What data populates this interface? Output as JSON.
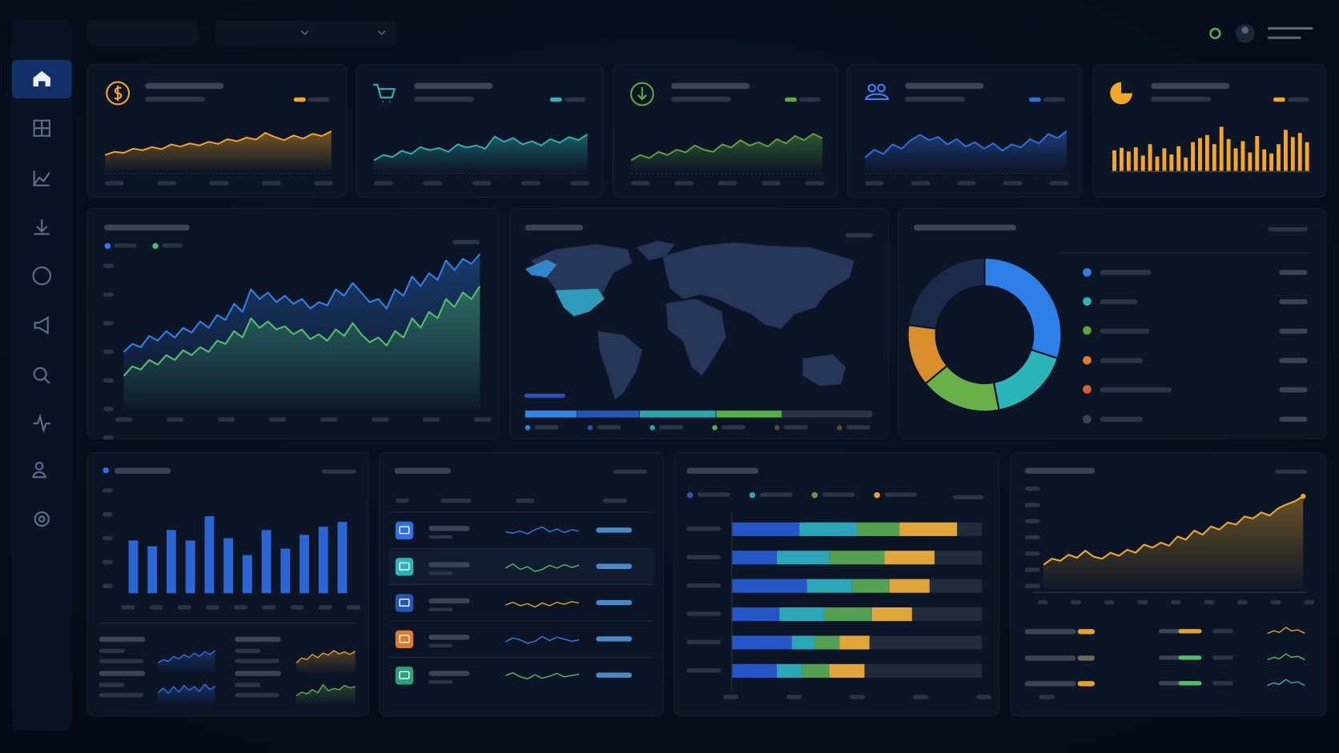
{
  "kpi_cards": [
    {
      "type": "area",
      "color": "#f5a623",
      "ylim": [
        0,
        10
      ],
      "values": [
        3,
        3.6,
        3.4,
        4.2,
        3.9,
        4.5,
        4.1,
        5,
        4.6,
        5.2,
        4.8,
        5.5,
        5.1,
        6,
        5.6,
        6.3,
        5.9,
        7.2,
        6.4,
        5.8,
        6.7,
        6.1,
        7,
        6.6,
        7.5
      ]
    },
    {
      "type": "area",
      "color": "#2bb5b8",
      "ylim": [
        0,
        10
      ],
      "values": [
        2,
        3,
        2.6,
        3.8,
        3.2,
        4.5,
        3.9,
        4.3,
        3.6,
        5,
        4.4,
        4.8,
        4.2,
        6.5,
        5.5,
        6.2,
        5,
        5.6,
        4.8,
        6,
        5.3,
        6.4,
        5.8,
        6.9
      ]
    },
    {
      "type": "area",
      "color": "#5aa83c",
      "ylim": [
        0,
        10
      ],
      "values": [
        2,
        3,
        2.4,
        3.6,
        3,
        4,
        3.5,
        4.8,
        4,
        3.6,
        5,
        4.4,
        5.8,
        4.8,
        5.4,
        4.6,
        6,
        5.2,
        6.6,
        5.8,
        7,
        6.2
      ]
    },
    {
      "type": "area",
      "color": "#2f6fe0",
      "ylim": [
        0,
        10
      ],
      "values": [
        2.5,
        4,
        3.2,
        5,
        4.2,
        5.8,
        6.8,
        5.8,
        6.4,
        5,
        6,
        4.6,
        5.4,
        4.2,
        5.2,
        3.8,
        5,
        4.4,
        6,
        5.2,
        7,
        6.2,
        7.5
      ]
    },
    {
      "type": "bar",
      "color": "#f5a623",
      "ylim": [
        0,
        10
      ],
      "values": [
        4,
        4.5,
        3.8,
        4.6,
        3,
        5.2,
        2.8,
        4.4,
        3.2,
        4.8,
        2.6,
        5.6,
        6.4,
        7,
        5.2,
        8.6,
        6.2,
        4.4,
        5.8,
        3.6,
        6.8,
        4.2,
        3.4,
        5.2,
        8,
        6.6,
        7.4,
        5.6
      ]
    }
  ],
  "main_chart": {
    "type": "area",
    "ylim": [
      0,
      10
    ],
    "series": [
      {
        "color": "#2f7fe8",
        "values": [
          3.5,
          4,
          3.8,
          4.5,
          4.2,
          4.8,
          4.4,
          5,
          4.7,
          5.4,
          5,
          5.8,
          5.5,
          6.5,
          6,
          7.4,
          6.8,
          7.2,
          6.6,
          7,
          6.5,
          6.8,
          6.2,
          6.6,
          6.4,
          7.4,
          7,
          7.8,
          7.2,
          6.6,
          6.8,
          6.2,
          7.4,
          7,
          8.2,
          7.6,
          8.4,
          8,
          9.2,
          8.6,
          9.3,
          9,
          9.6
        ]
      },
      {
        "color": "#4fbf6a",
        "values": [
          2,
          2.6,
          2.4,
          3,
          2.7,
          3.3,
          3,
          3.6,
          3.3,
          3.8,
          3.5,
          4.2,
          4,
          4.8,
          4.4,
          5.6,
          5,
          5.4,
          4.9,
          5.1,
          4.6,
          4.9,
          4.3,
          4.6,
          4.2,
          4.9,
          4.5,
          5.3,
          4.6,
          4.1,
          4.4,
          3.9,
          4.8,
          4.4,
          5.6,
          5,
          6,
          5.6,
          6.8,
          6.3,
          7.2,
          6.8,
          7.6
        ]
      }
    ]
  },
  "region_bar": {
    "xlim": [
      0,
      100
    ],
    "values": [
      15,
      18,
      22,
      19
    ],
    "colors": [
      "#2f86e8",
      "#2456b8",
      "#2aa6b0",
      "#56b048"
    ]
  },
  "donut": {
    "values": [
      30,
      17,
      17,
      13,
      23
    ],
    "colors": [
      "#2f7fe8",
      "#2bb5b8",
      "#6ab048",
      "#d88f2c",
      "#1a2a48"
    ]
  },
  "bar_chart": {
    "ylim": [
      0,
      10
    ],
    "color": "#2f6fe8",
    "values": [
      6.5,
      5.8,
      7.8,
      6.5,
      9.5,
      6.8,
      4.7,
      7.8,
      5.5,
      7.2,
      8.2,
      8.8
    ]
  },
  "mini_sparks": [
    {
      "color": "#2f6fe8",
      "values": [
        3,
        4,
        3.5,
        5,
        4.2,
        5.5,
        4.6,
        6,
        5,
        6.5,
        5.6,
        6.8
      ]
    },
    {
      "color": "#e6a22a",
      "values": [
        3,
        4.5,
        4,
        5.6,
        4.6,
        6,
        5.4,
        6.8,
        5.8,
        6.4,
        5.6,
        6.6
      ]
    },
    {
      "color": "#2f6fe8",
      "values": [
        4,
        5.5,
        3.8,
        6,
        4.2,
        6.4,
        4.8,
        6,
        4.4,
        6.8,
        5,
        6.2
      ]
    },
    {
      "color": "#6ab048",
      "values": [
        3,
        4.2,
        3.6,
        5,
        4,
        6.6,
        4.6,
        5.4,
        5,
        6.4,
        5.6,
        6
      ]
    }
  ],
  "table_rows": [
    {
      "icon_color": "#2f6fe8",
      "spark_color": "#2f7fe8",
      "values": [
        5,
        4.6,
        5.2,
        4.4,
        5.6,
        6.4,
        5,
        5.8,
        4.8,
        5.6,
        5.2
      ]
    },
    {
      "icon_color": "#2bb5b8",
      "spark_color": "#4fbf6a",
      "values": [
        5,
        6.2,
        4.6,
        5.4,
        4,
        4.6,
        5.8,
        5,
        6,
        5.2,
        5.8
      ]
    },
    {
      "icon_color": "#2456b8",
      "spark_color": "#e6a22a",
      "values": [
        4.8,
        5.6,
        4.6,
        5.2,
        4.2,
        5.4,
        4.6,
        5.6,
        5,
        5.8,
        5.4
      ]
    },
    {
      "icon_color": "#e07a2c",
      "spark_color": "#2f7fe8",
      "values": [
        4.6,
        5.8,
        5.2,
        4.2,
        4.8,
        6.2,
        5,
        6,
        5.4,
        4.8,
        5.2
      ]
    },
    {
      "icon_color": "#2aa07a",
      "spark_color": "#4fbf6a",
      "values": [
        5.4,
        6.2,
        5,
        4.4,
        5.6,
        4.6,
        5.2,
        6,
        5,
        5.4,
        5.8
      ]
    }
  ],
  "stacked_bars": {
    "xlim": [
      0,
      100
    ],
    "colors": [
      "#2456c8",
      "#2aa6b8",
      "#52a050",
      "#e0a63a"
    ],
    "rows": [
      [
        27,
        23,
        17,
        23
      ],
      [
        18,
        21,
        22,
        20
      ],
      [
        30,
        18,
        15,
        16
      ],
      [
        19,
        18,
        19,
        16
      ],
      [
        24,
        9,
        10,
        12
      ],
      [
        18,
        10,
        11,
        14
      ]
    ]
  },
  "trend_chart": {
    "ylim": [
      0,
      10
    ],
    "color": "#f0a825",
    "values": [
      2.4,
      3,
      2.8,
      3.4,
      3.1,
      3.8,
      3.2,
      3,
      3.6,
      3.3,
      3.9,
      3.6,
      4.4,
      4.1,
      4.6,
      4.3,
      5.2,
      4.9,
      5.8,
      5.4,
      6.2,
      5.9,
      6.6,
      6.4,
      7.2,
      7,
      7.6,
      7.3,
      8,
      8.4,
      8.7,
      9.2
    ]
  }
}
